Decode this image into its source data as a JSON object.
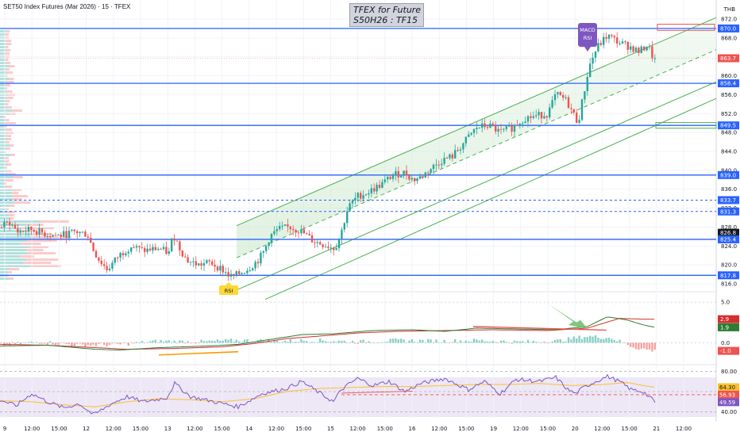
{
  "header": {
    "symbol_line": "SET50 Index Futures (Mar 2026) · 15 · TFEX",
    "watermark_line1": "TFEX for Future",
    "watermark_line2": "S50H26 : TF15",
    "currency": "THB"
  },
  "colors": {
    "up": "#26a69a",
    "down": "#ef5350",
    "level_line": "#2962ff",
    "channel": "#4caf50",
    "macd_line": "#2e7d32",
    "signal_line": "#d32f2f",
    "rsi_line": "#7e57c2",
    "rsi_ma": "#fbc02d",
    "rsi_band": "#ede7f6",
    "orange_trend": "#ff9800",
    "green_arrow": "#66bb6a",
    "annotation_purple": "#7e57c2",
    "annotation_yellow": "#fdd835"
  },
  "annotations": {
    "macd_rsi_tag_line1": "MACD",
    "macd_rsi_tag_line2": "RSI",
    "rsi_tag": "RSI"
  },
  "chart_data": [
    {
      "type": "candlestick",
      "panel": "price",
      "ylim": [
        815,
        873
      ],
      "y_ticks": [
        816.0,
        820.0,
        824.0,
        828.0,
        832.0,
        836.0,
        840.0,
        844.0,
        848.0,
        852.0,
        856.0,
        860.0,
        864.0,
        868.0,
        872.0
      ],
      "x_tick_labels": [
        "9",
        "12:00",
        "15:00",
        "12",
        "12:00",
        "15:00",
        "13",
        "12:00",
        "15:00",
        "14",
        "12:00",
        "15:00",
        "15",
        "12:00",
        "15:00",
        "16",
        "12:00",
        "15:00",
        "19",
        "12:00",
        "15:00",
        "20",
        "12:00",
        "15:00",
        "21",
        "12:00"
      ],
      "horizontal_levels": [
        870.0,
        858.4,
        849.5,
        839.0,
        833.7,
        831.3,
        825.4,
        817.8
      ],
      "dashed_levels": [
        833.7,
        831.3
      ],
      "price_labels": [
        {
          "value": "870.0",
          "kind": "level"
        },
        {
          "value": "863.7",
          "kind": "last"
        },
        {
          "value": "858.4",
          "kind": "level"
        },
        {
          "value": "849.5",
          "kind": "level"
        },
        {
          "value": "839.0",
          "kind": "level"
        },
        {
          "value": "833.7",
          "kind": "level"
        },
        {
          "value": "831.3",
          "kind": "level"
        },
        {
          "value": "826.8",
          "kind": "dark"
        },
        {
          "value": "825.4",
          "kind": "level"
        },
        {
          "value": "817.8",
          "kind": "level"
        }
      ],
      "last_price": 863.7,
      "close_path": [
        [
          0,
          828
        ],
        [
          12,
          829
        ],
        [
          22,
          827
        ],
        [
          40,
          827.5
        ],
        [
          58,
          826.5
        ],
        [
          75,
          826.2
        ],
        [
          95,
          827
        ],
        [
          110,
          826.5
        ],
        [
          118,
          823
        ],
        [
          125,
          821
        ],
        [
          135,
          819
        ],
        [
          150,
          822
        ],
        [
          165,
          824
        ],
        [
          180,
          823
        ],
        [
          200,
          823.5
        ],
        [
          213,
          822.5
        ],
        [
          218,
          826.5
        ],
        [
          225,
          824
        ],
        [
          235,
          821
        ],
        [
          250,
          820
        ],
        [
          265,
          820.5
        ],
        [
          280,
          819
        ],
        [
          290,
          817.5
        ],
        [
          300,
          818
        ],
        [
          315,
          819.5
        ],
        [
          325,
          821
        ],
        [
          333,
          823
        ],
        [
          340,
          826
        ],
        [
          350,
          827.5
        ],
        [
          365,
          828
        ],
        [
          380,
          827
        ],
        [
          395,
          825
        ],
        [
          410,
          824.2
        ],
        [
          422,
          823.5
        ],
        [
          430,
          827
        ],
        [
          438,
          832
        ],
        [
          450,
          834.5
        ],
        [
          465,
          835.5
        ],
        [
          480,
          837
        ],
        [
          495,
          839
        ],
        [
          510,
          839.5
        ],
        [
          520,
          838
        ],
        [
          530,
          838.5
        ],
        [
          540,
          840
        ],
        [
          555,
          842
        ],
        [
          570,
          843
        ],
        [
          585,
          846
        ],
        [
          600,
          849
        ],
        [
          615,
          849.5
        ],
        [
          630,
          848
        ],
        [
          645,
          849
        ],
        [
          660,
          851
        ],
        [
          675,
          851.5
        ],
        [
          690,
          852
        ],
        [
          700,
          856
        ],
        [
          712,
          855
        ],
        [
          722,
          852
        ],
        [
          728,
          850
        ],
        [
          735,
          856
        ],
        [
          742,
          862
        ],
        [
          752,
          866
        ],
        [
          765,
          868.5
        ],
        [
          780,
          867
        ],
        [
          795,
          866
        ],
        [
          805,
          865
        ],
        [
          815,
          866.5
        ],
        [
          825,
          863.7
        ]
      ]
    },
    {
      "type": "line",
      "panel": "macd",
      "ylim": [
        -2.5,
        5.5
      ],
      "y_ticks": [
        0.0,
        5.0
      ],
      "value_labels": [
        "2.9",
        "1.9",
        "-1.0"
      ],
      "series": [
        {
          "name": "",
          "kind": "macd",
          "values_path": [
            [
              0,
              -0.4
            ],
            [
              60,
              -0.3
            ],
            [
              120,
              -0.8
            ],
            [
              150,
              -0.9
            ],
            [
              200,
              -0.6
            ],
            [
              260,
              -0.4
            ],
            [
              300,
              -0.2
            ],
            [
              340,
              0.4
            ],
            [
              380,
              1.0
            ],
            [
              420,
              1.1
            ],
            [
              470,
              1.5
            ],
            [
              520,
              1.6
            ],
            [
              560,
              1.4
            ],
            [
              600,
              1.8
            ],
            [
              650,
              1.7
            ],
            [
              700,
              1.6
            ],
            [
              740,
              2.0
            ],
            [
              765,
              3.2
            ],
            [
              790,
              2.8
            ],
            [
              810,
              2.2
            ],
            [
              825,
              1.9
            ]
          ]
        },
        {
          "name": "",
          "kind": "signal",
          "values_path": [
            [
              0,
              -0.2
            ],
            [
              60,
              -0.3
            ],
            [
              120,
              -0.6
            ],
            [
              160,
              -0.8
            ],
            [
              220,
              -0.7
            ],
            [
              280,
              -0.5
            ],
            [
              320,
              -0.1
            ],
            [
              360,
              0.5
            ],
            [
              400,
              0.8
            ],
            [
              450,
              1.2
            ],
            [
              500,
              1.4
            ],
            [
              560,
              1.5
            ],
            [
              620,
              1.6
            ],
            [
              690,
              1.5
            ],
            [
              740,
              1.8
            ],
            [
              780,
              3.0
            ],
            [
              810,
              2.9
            ],
            [
              825,
              2.9
            ]
          ]
        },
        {
          "name": "",
          "kind": "histogram",
          "values_path": [
            [
              0,
              -0.3
            ],
            [
              50,
              0.1
            ],
            [
              100,
              -0.3
            ],
            [
              150,
              -0.2
            ],
            [
              200,
              0.2
            ],
            [
              250,
              0.1
            ],
            [
              300,
              0.3
            ],
            [
              350,
              0.2
            ],
            [
              400,
              0.3
            ],
            [
              450,
              0.1
            ],
            [
              500,
              0.3
            ],
            [
              560,
              0.2
            ],
            [
              600,
              0.3
            ],
            [
              650,
              0.1
            ],
            [
              700,
              0.2
            ],
            [
              740,
              0.8
            ],
            [
              770,
              0.6
            ],
            [
              800,
              -0.6
            ],
            [
              825,
              -1.0
            ]
          ]
        }
      ]
    },
    {
      "type": "line",
      "panel": "rsi",
      "ylim": [
        35,
        85
      ],
      "y_ticks": [
        40.0,
        60.0,
        80.0
      ],
      "value_labels": [
        "64.30",
        "56.93",
        "49.59"
      ],
      "series": [
        {
          "name": "",
          "kind": "rsi",
          "values_path": [
            [
              0,
              52
            ],
            [
              20,
              46
            ],
            [
              40,
              58
            ],
            [
              60,
              50
            ],
            [
              80,
              44
            ],
            [
              100,
              48
            ],
            [
              118,
              37
            ],
            [
              140,
              48
            ],
            [
              160,
              55
            ],
            [
              180,
              50
            ],
            [
              210,
              54
            ],
            [
              220,
              68
            ],
            [
              240,
              55
            ],
            [
              270,
              50
            ],
            [
              300,
              45
            ],
            [
              330,
              58
            ],
            [
              360,
              63
            ],
            [
              380,
              70
            ],
            [
              400,
              60
            ],
            [
              420,
              50
            ],
            [
              430,
              62
            ],
            [
              450,
              73
            ],
            [
              470,
              66
            ],
            [
              490,
              70
            ],
            [
              510,
              60
            ],
            [
              530,
              68
            ],
            [
              560,
              73
            ],
            [
              590,
              62
            ],
            [
              610,
              70
            ],
            [
              630,
              58
            ],
            [
              650,
              72
            ],
            [
              680,
              70
            ],
            [
              700,
              74
            ],
            [
              715,
              62
            ],
            [
              725,
              58
            ],
            [
              735,
              64
            ],
            [
              750,
              70
            ],
            [
              765,
              75
            ],
            [
              780,
              70
            ],
            [
              795,
              62
            ],
            [
              810,
              60
            ],
            [
              825,
              49.59
            ]
          ]
        },
        {
          "name": "",
          "kind": "rsi_ma",
          "values_path": [
            [
              0,
              51
            ],
            [
              40,
              50
            ],
            [
              80,
              47
            ],
            [
              120,
              45
            ],
            [
              160,
              50
            ],
            [
              200,
              53
            ],
            [
              240,
              52
            ],
            [
              280,
              50
            ],
            [
              320,
              53
            ],
            [
              360,
              60
            ],
            [
              400,
              63
            ],
            [
              440,
              64
            ],
            [
              480,
              65
            ],
            [
              520,
              65
            ],
            [
              560,
              66
            ],
            [
              600,
              67
            ],
            [
              640,
              67
            ],
            [
              680,
              68
            ],
            [
              720,
              66
            ],
            [
              760,
              67
            ],
            [
              790,
              69
            ],
            [
              810,
              66
            ],
            [
              825,
              64.3
            ]
          ]
        }
      ]
    }
  ]
}
